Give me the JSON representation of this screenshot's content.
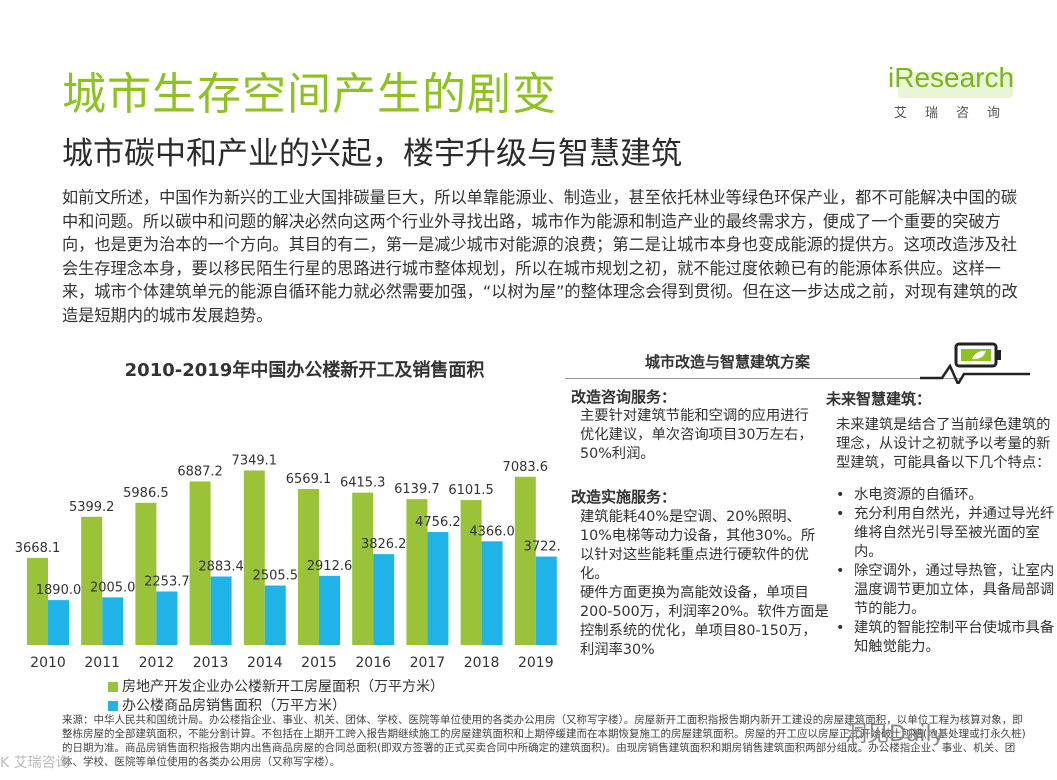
{
  "header": {
    "title": "城市生存空间产生的剧变",
    "subtitle": "城市碳中和产业的兴起，楼宇升级与智慧建筑",
    "logo_text": "iResearch",
    "logo_sub": "艾瑞咨询"
  },
  "intro_text": "如前文所述，中国作为新兴的工业大国排碳量巨大，所以单靠能源业、制造业，甚至依托林业等绿色环保产业，都不可能解决中国的碳中和问题。所以碳中和问题的解决必然向这两个行业外寻找出路，城市作为能源和制造产业的最终需求方，便成了一个重要的突破方向，也是更为治本的一个方向。其目的有二，第一是减少城市对能源的浪费；第二是让城市本身也变成能源的提供方。这项改造涉及社会生存理念本身，要以移民陌生行星的思路进行城市整体规划，所以在城市规划之初，就不能过度依赖已有的能源体系供应。这样一来，城市个体建筑单元的能源自循环能力就必然需要加强，“以树为屋”的整体理念会得到贯彻。但在这一步达成之前，对现有建筑的改造是短期内的城市发展趋势。",
  "chart_data": {
    "type": "bar",
    "title": "2010-2019年中国办公楼新开工及销售面积",
    "categories": [
      "2010",
      "2011",
      "2012",
      "2013",
      "2014",
      "2015",
      "2016",
      "2017",
      "2018",
      "2019"
    ],
    "series": [
      {
        "name": "房地产开发企业办公楼新开工房屋面积（万平方米）",
        "color": "#9bc33a",
        "values": [
          3668.1,
          5399.2,
          5986.5,
          6887.2,
          7349.1,
          6569.1,
          6415.3,
          6139.7,
          6101.5,
          7083.6
        ]
      },
      {
        "name": "办公楼商品房销售面积（万平方米）",
        "color": "#1fb3e8",
        "values": [
          1890.0,
          2005.0,
          2253.7,
          2883.4,
          2505.5,
          2912.6,
          3826.2,
          4756.2,
          4366.0,
          3722.8
        ]
      }
    ],
    "value_labels": [
      [
        "3668.1",
        "5399.2",
        "5986.5",
        "6887.2",
        "7349.1",
        "6569.1",
        "6415.3",
        "6139.7",
        "6101.5",
        "7083.6"
      ],
      [
        "1890.0",
        "2005.0",
        "2253.7",
        "2883.4",
        "2505.5",
        "2912.6",
        "3826.2",
        "4756.2",
        "4366.0",
        "3722.8"
      ]
    ],
    "ylim": [
      0,
      8000
    ],
    "grid": false,
    "legend": "bottom"
  },
  "panel": {
    "title": "城市改造与智慧建筑方案",
    "icon": "battery-leaf-icon",
    "consult_title": "改造咨询服务：",
    "consult_text": "主要针对建筑节能和空调的应用进行优化建议，单次咨询项目30万左右，50%利润。",
    "implement_title": "改造实施服务：",
    "implement_text1": "建筑能耗40%是空调、20%照明、10%电梯等动力设备，其他30%。所以针对这些能耗重点进行硬软件的优化。",
    "implement_text2": "硬件方面更换为高能效设备，单项目200-500万，利润率20%。软件方面是控制系统的优化，单项目80-150万，利润率30%",
    "future_title": "未来智慧建筑：",
    "future_text": "未来建筑是结合了当前绿色建筑的理念，从设计之初就予以考量的新型建筑，可能具备以下几个特点：",
    "future_items": [
      "水电资源的自循环。",
      "充分利用自然光，并通过导光纤维将自然光引导至被光面的室内。",
      "除空调外，通过导热管，让室内温度调节更加立体，具备局部调节的能力。",
      "建筑的智能控制平台使城市具备知触觉能力。"
    ]
  },
  "source_text": "来源：中华人民共和国统计局。办公楼指企业、事业、机关、团体、学校、医院等单位使用的各类办公用房（又称写字楼）。房屋新开工面积指报告期内新开工建设的房屋建筑面积，以单位工程为核算对象，即整栋房屋的全部建筑面积，不能分割计算。不包括在上期开工跨入报告期继续施工的房屋建筑面积和上期停缓建而在本期恢复施工的房屋建筑面积。房屋的开工应以房屋正式开始破土刨槽(地基处理或打永久桩)的日期为准。商品房销售面积指报告期内出售商品房屋的合同总面积(即双方签署的正式买卖合同中所确定的建筑面积)。由现房销售建筑面积和期房销售建筑面积两部分组成。办公楼指企业、事业、机关、团体、学校、医院等单位使用的各类办公用房（又称写字楼）。",
  "watermark": "洞见Daily",
  "watermark2": "K 艾瑞咨询"
}
